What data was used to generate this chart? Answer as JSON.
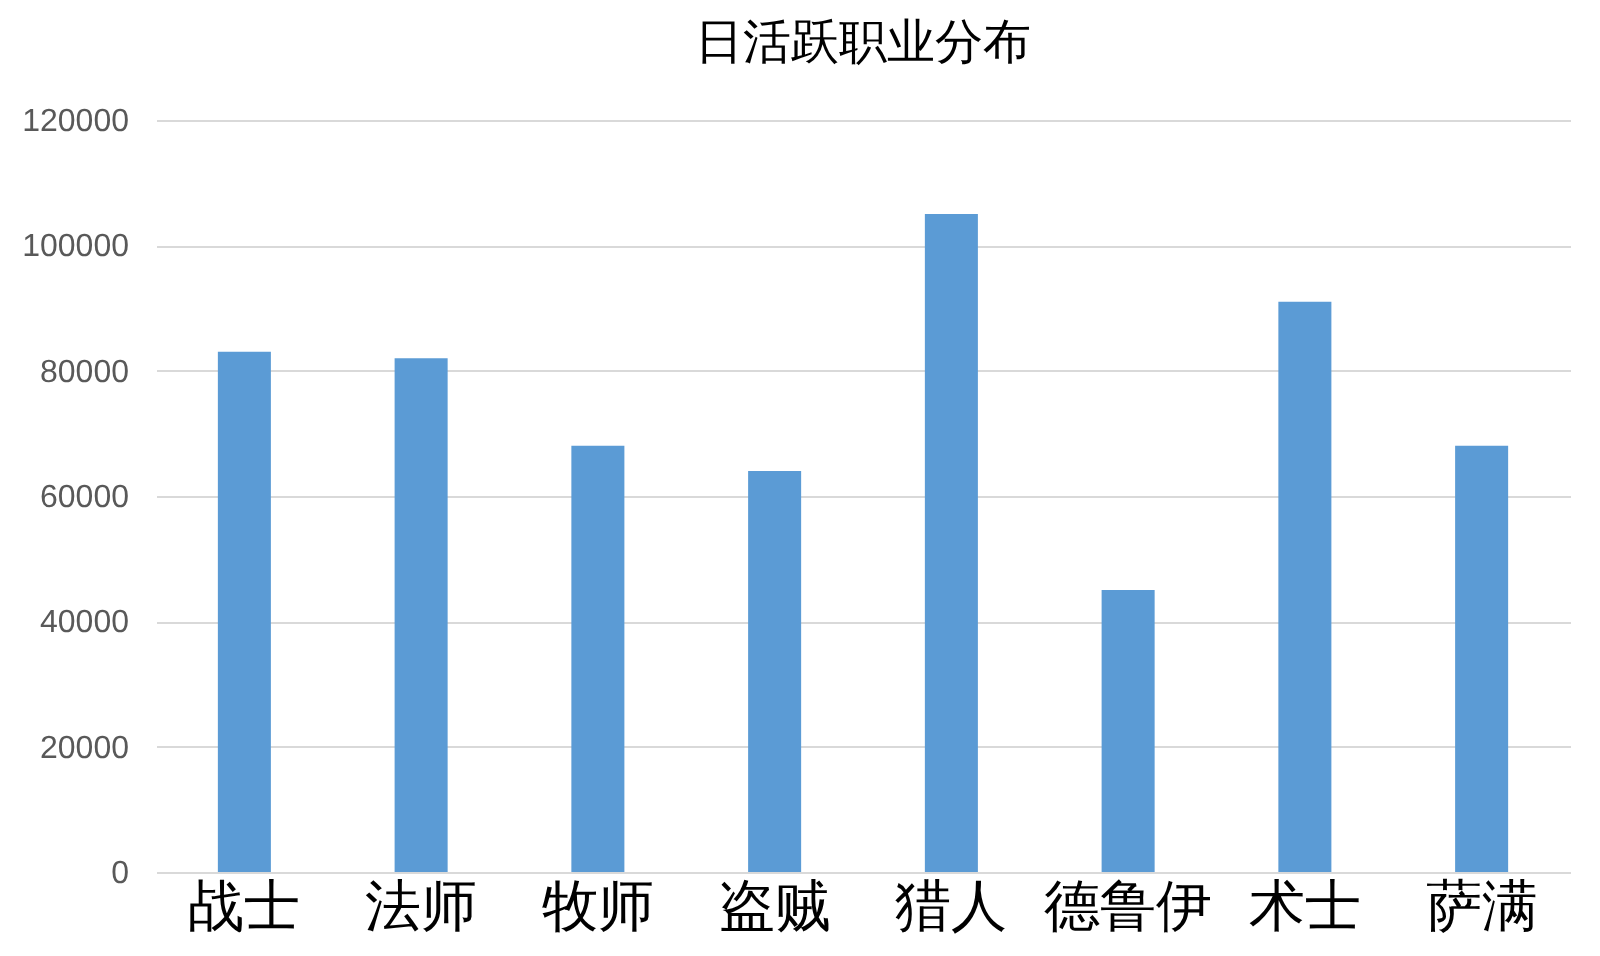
{
  "chart_data": {
    "type": "bar",
    "title": "日活跃职业分布",
    "categories": [
      "战士",
      "法师",
      "牧师",
      "盗贼",
      "猎人",
      "德鲁伊",
      "术士",
      "萨满"
    ],
    "values": [
      83000,
      82000,
      68000,
      64000,
      105000,
      45000,
      91000,
      68000
    ],
    "color": "#5b9bd5",
    "ylim": [
      0,
      120000
    ],
    "yticks": [
      0,
      20000,
      40000,
      60000,
      80000,
      100000,
      120000
    ],
    "grid": "y"
  }
}
